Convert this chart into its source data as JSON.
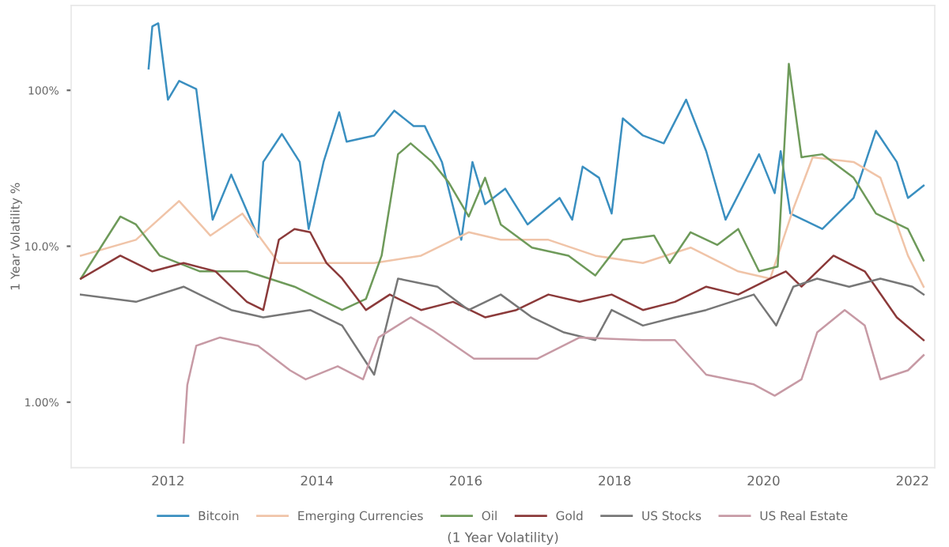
{
  "chart_data": {
    "type": "line",
    "xlabel": "(1 Year Volatility)",
    "ylabel": "1 Year Volatility %",
    "log": "y",
    "grid": false,
    "legend": "bottom",
    "marker": "none",
    "line_style": "solid",
    "xlim": [
      2010.7,
      2022.3
    ],
    "xticks": [
      2012,
      2014,
      2016,
      2018,
      2020,
      2022
    ],
    "ylim": [
      0.38,
      350
    ],
    "yticks": [
      {
        "value": 1,
        "label": "1.00%"
      },
      {
        "value": 10,
        "label": "10.0%"
      },
      {
        "value": 100,
        "label": "100%"
      }
    ],
    "series": [
      {
        "name": "Bitcoin",
        "color": "#3a8fc0",
        "x": [
          2011.74,
          2011.79,
          2011.87,
          2012.0,
          2012.15,
          2012.38,
          2012.6,
          2012.85,
          2013.21,
          2013.28,
          2013.53,
          2013.77,
          2013.89,
          2014.09,
          2014.3,
          2014.4,
          2014.77,
          2015.04,
          2015.3,
          2015.45,
          2015.68,
          2015.94,
          2016.09,
          2016.26,
          2016.53,
          2016.83,
          2017.26,
          2017.43,
          2017.57,
          2017.79,
          2017.96,
          2018.11,
          2018.38,
          2018.66,
          2018.96,
          2019.23,
          2019.49,
          2019.94,
          2020.15,
          2020.23,
          2020.36,
          2020.79,
          2021.21,
          2021.51,
          2021.79,
          2021.94,
          2022.15
        ],
        "values": [
          138,
          257,
          269,
          87,
          115,
          102,
          14.8,
          28.8,
          11.5,
          34.7,
          52.5,
          34.7,
          12.9,
          34.7,
          72.4,
          46.8,
          51.3,
          74.1,
          58.9,
          58.9,
          34.7,
          11.0,
          34.7,
          18.6,
          23.4,
          13.8,
          20.4,
          14.8,
          32.4,
          27.5,
          16.2,
          66.1,
          51.3,
          45.7,
          87.1,
          40.7,
          14.8,
          38.9,
          21.9,
          40.7,
          16.2,
          12.9,
          20.4,
          55,
          34.7,
          20.4,
          24.5
        ]
      },
      {
        "name": "Emerging Currencies",
        "color": "#f0c4a8",
        "x": [
          2010.83,
          2011.57,
          2012.15,
          2012.57,
          2013.0,
          2013.49,
          2014.13,
          2014.77,
          2015.4,
          2016.04,
          2016.47,
          2017.11,
          2017.74,
          2018.38,
          2019.02,
          2019.66,
          2020.09,
          2020.4,
          2020.66,
          2021.21,
          2021.57,
          2021.94,
          2022.15
        ],
        "values": [
          8.7,
          11.0,
          19.5,
          11.7,
          16.2,
          7.8,
          7.8,
          7.8,
          8.7,
          12.3,
          11.0,
          11.0,
          8.7,
          7.8,
          9.8,
          6.9,
          6.2,
          17.4,
          37.2,
          34.7,
          27.5,
          8.7,
          5.5
        ]
      },
      {
        "name": "Oil",
        "color": "#6e9a5a",
        "x": [
          2010.83,
          2011.36,
          2011.57,
          2011.89,
          2012.43,
          2013.06,
          2013.7,
          2014.34,
          2014.66,
          2014.87,
          2015.09,
          2015.26,
          2015.55,
          2015.77,
          2016.04,
          2016.26,
          2016.47,
          2016.89,
          2017.38,
          2017.74,
          2018.11,
          2018.53,
          2018.74,
          2019.02,
          2019.38,
          2019.66,
          2019.94,
          2020.19,
          2020.34,
          2020.51,
          2020.79,
          2021.21,
          2021.51,
          2021.94,
          2022.15
        ],
        "values": [
          6.2,
          15.5,
          13.8,
          8.7,
          6.9,
          6.9,
          5.5,
          3.9,
          4.6,
          8.7,
          38.9,
          45.7,
          34.7,
          25.7,
          15.5,
          27.5,
          13.8,
          9.8,
          8.7,
          6.5,
          11.0,
          11.7,
          7.8,
          12.3,
          10.2,
          12.9,
          6.9,
          7.4,
          148,
          37.2,
          38.9,
          27.5,
          16.2,
          12.9,
          8.1
        ]
      },
      {
        "name": "Gold",
        "color": "#8b3a3a",
        "x": [
          2010.83,
          2011.36,
          2011.79,
          2012.21,
          2012.64,
          2013.06,
          2013.28,
          2013.49,
          2013.7,
          2013.91,
          2014.13,
          2014.34,
          2014.66,
          2014.98,
          2015.4,
          2015.83,
          2016.26,
          2016.68,
          2017.11,
          2017.53,
          2017.96,
          2018.38,
          2018.81,
          2019.23,
          2019.66,
          2020.09,
          2020.3,
          2020.51,
          2020.94,
          2021.36,
          2021.79,
          2022.15
        ],
        "values": [
          6.2,
          8.7,
          6.9,
          7.8,
          6.9,
          4.4,
          3.9,
          11.0,
          12.9,
          12.3,
          7.8,
          6.2,
          3.9,
          4.9,
          3.9,
          4.4,
          3.5,
          3.9,
          4.9,
          4.4,
          4.9,
          3.9,
          4.4,
          5.5,
          4.9,
          6.2,
          6.9,
          5.5,
          8.7,
          6.9,
          3.5,
          2.5
        ]
      },
      {
        "name": "US Stocks",
        "color": "#777777",
        "x": [
          2010.83,
          2011.57,
          2012.21,
          2012.85,
          2013.28,
          2013.91,
          2014.34,
          2014.77,
          2015.09,
          2015.62,
          2016.04,
          2016.47,
          2016.89,
          2017.32,
          2017.74,
          2017.96,
          2018.38,
          2018.81,
          2019.23,
          2019.87,
          2020.17,
          2020.4,
          2020.72,
          2021.15,
          2021.57,
          2022.0,
          2022.15
        ],
        "values": [
          4.9,
          4.4,
          5.5,
          3.9,
          3.5,
          3.9,
          3.1,
          1.5,
          6.2,
          5.5,
          3.9,
          4.9,
          3.5,
          2.8,
          2.5,
          3.9,
          3.1,
          3.5,
          3.9,
          4.9,
          3.1,
          5.5,
          6.2,
          5.5,
          6.2,
          5.5,
          4.9
        ]
      },
      {
        "name": "US Real Estate",
        "color": "#c79aa5",
        "x": [
          2012.21,
          2012.26,
          2012.38,
          2012.7,
          2013.21,
          2013.64,
          2013.85,
          2014.28,
          2014.62,
          2014.83,
          2015.26,
          2015.55,
          2016.11,
          2016.96,
          2017.53,
          2018.38,
          2018.81,
          2019.23,
          2019.87,
          2020.15,
          2020.51,
          2020.72,
          2021.09,
          2021.36,
          2021.57,
          2021.94,
          2022.15
        ],
        "values": [
          0.55,
          1.29,
          2.3,
          2.6,
          2.3,
          1.6,
          1.4,
          1.7,
          1.4,
          2.6,
          3.5,
          2.9,
          1.9,
          1.9,
          2.6,
          2.5,
          2.5,
          1.5,
          1.3,
          1.1,
          1.4,
          2.8,
          3.9,
          3.1,
          1.4,
          1.6,
          2.0
        ]
      }
    ]
  }
}
